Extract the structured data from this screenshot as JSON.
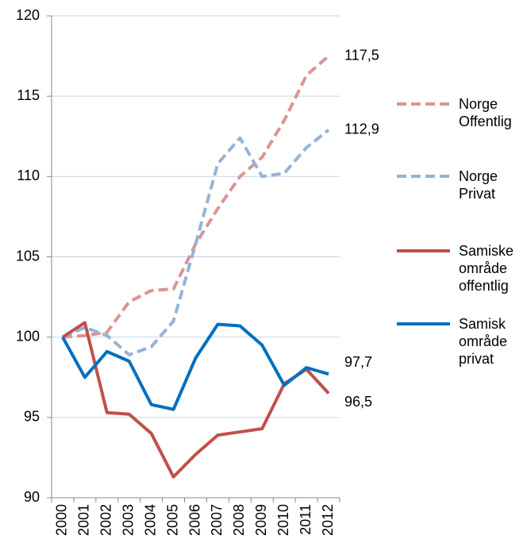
{
  "chart_data": {
    "type": "line",
    "categories": [
      "2000",
      "2001",
      "2002",
      "2003",
      "2004",
      "2005",
      "2006",
      "2007",
      "2008",
      "2009",
      "2010",
      "2011",
      "2012"
    ],
    "ylim": [
      90,
      120
    ],
    "yticks": [
      90,
      95,
      100,
      105,
      110,
      115,
      120
    ],
    "grid": true,
    "series": [
      {
        "name": "Norge Offentlig",
        "color": "#d99594",
        "dashed": true,
        "values": [
          100,
          100.1,
          100.3,
          102.2,
          102.9,
          103.0,
          105.8,
          108.0,
          110.0,
          111.2,
          113.5,
          116.3,
          117.5
        ],
        "value_labels": [
          null,
          null,
          null,
          null,
          null,
          null,
          null,
          null,
          null,
          null,
          null,
          null,
          "117,5"
        ]
      },
      {
        "name": "Norge Privat",
        "color": "#95b3d7",
        "dashed": true,
        "values": [
          100,
          100.6,
          100.1,
          98.9,
          99.4,
          101.0,
          105.8,
          110.8,
          112.4,
          110.0,
          110.2,
          111.8,
          112.9
        ],
        "value_labels": [
          null,
          null,
          null,
          null,
          null,
          null,
          null,
          null,
          null,
          null,
          null,
          null,
          "112,9"
        ]
      },
      {
        "name": "Samiske område offentlig",
        "color": "#c0504d",
        "dashed": false,
        "values": [
          100,
          100.9,
          95.3,
          95.2,
          94.0,
          91.3,
          92.7,
          93.9,
          94.1,
          94.3,
          97.1,
          98.0,
          96.5
        ],
        "value_labels": [
          null,
          null,
          null,
          null,
          null,
          null,
          null,
          null,
          null,
          null,
          null,
          null,
          "96,5"
        ]
      },
      {
        "name": "Samisk område privat",
        "color": "#0070c0",
        "dashed": false,
        "values": [
          100,
          97.5,
          99.1,
          98.5,
          95.8,
          95.5,
          98.7,
          100.8,
          100.7,
          99.5,
          97.0,
          98.1,
          97.7
        ],
        "value_labels": [
          null,
          null,
          null,
          null,
          null,
          null,
          null,
          null,
          null,
          null,
          null,
          null,
          "97,7"
        ]
      }
    ]
  }
}
